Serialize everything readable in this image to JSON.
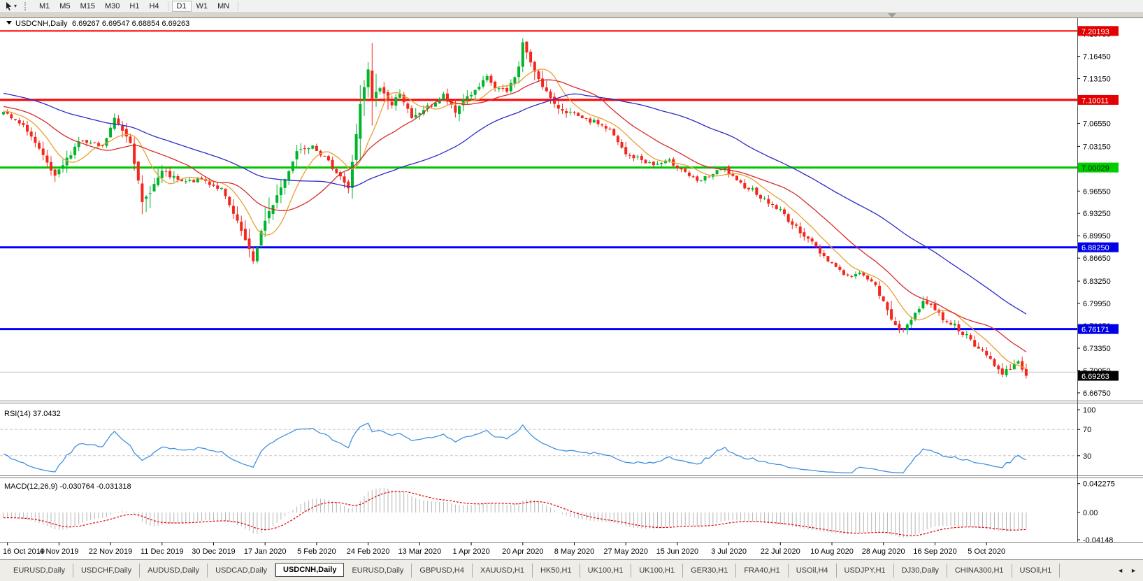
{
  "toolbar": {
    "timeframes": [
      "M1",
      "M5",
      "M15",
      "M30",
      "H1",
      "H4",
      "D1",
      "W1",
      "MN"
    ],
    "active_timeframe": "D1",
    "separators_after": [
      5,
      8
    ]
  },
  "chart": {
    "title": "USDCNH,Daily",
    "ohlc": "6.69267 6.69547 6.68854 6.69263",
    "price_ticks": [
      "7.19750",
      "7.16450",
      "7.13150",
      "7.06550",
      "7.03150",
      "6.96550",
      "6.93250",
      "6.89950",
      "6.86650",
      "6.83250",
      "6.79950",
      "6.76650",
      "6.73350",
      "6.70050",
      "6.66750"
    ]
  },
  "indicators": {
    "rsi": {
      "label": "RSI(14) 37.0432",
      "ticks": [
        {
          "v": 100,
          "t": "100"
        },
        {
          "v": 70,
          "t": "70"
        },
        {
          "v": 30,
          "t": "30"
        }
      ],
      "levels": [
        70,
        30
      ],
      "color": "#4191DF"
    },
    "macd": {
      "label": "MACD(12,26,9) -0.030764 -0.031318",
      "ticks": [
        {
          "v": 0.042275,
          "t": "0.042275"
        },
        {
          "v": 0,
          "t": "0.00"
        },
        {
          "v": -0.04148,
          "t": "-0.04148"
        }
      ]
    }
  },
  "dates": [
    "16 Oct 2019",
    "4 Nov 2019",
    "22 Nov 2019",
    "11 Dec 2019",
    "30 Dec 2019",
    "17 Jan 2020",
    "5 Feb 2020",
    "24 Feb 2020",
    "13 Mar 2020",
    "1 Apr 2020",
    "20 Apr 2020",
    "8 May 2020",
    "27 May 2020",
    "15 Jun 2020",
    "3 Jul 2020",
    "22 Jul 2020",
    "10 Aug 2020",
    "28 Aug 2020",
    "16 Sep 2020",
    "5 Oct 2020"
  ],
  "tabs": {
    "items": [
      "EURUSD,Daily",
      "USDCHF,Daily",
      "AUDUSD,Daily",
      "USDCAD,Daily",
      "USDCNH,Daily",
      "EURUSD,Daily",
      "GBPUSD,H4",
      "XAUUSD,H1",
      "HK50,H1",
      "UK100,H1",
      "UK100,H1",
      "GER30,H1",
      "FRA40,H1",
      "USOil,H4",
      "USDJPY,H1",
      "DJ30,Daily",
      "CHINA300,H1",
      "USOil,H1"
    ],
    "active_index": 4,
    "scroll_left": "◄",
    "scroll_right": "►"
  },
  "chart_data": {
    "type": "candlestick",
    "symbol": "USDCNH",
    "timeframe": "Daily",
    "open": 6.69267,
    "high": 6.69547,
    "low": 6.68854,
    "close": 6.69263,
    "count": 259,
    "seed": 7,
    "noise": 0.007,
    "ylim": [
      6.656,
      7.2064
    ],
    "prehistory_bars": 60,
    "date_tick_first_index": 1,
    "date_tick_step": 13,
    "up_color": "#00B42B",
    "down_color": "#F4271C",
    "ma": [
      {
        "period": 9,
        "color": "#E8A030"
      },
      {
        "period": 21,
        "color": "#D92B2B"
      },
      {
        "period": 55,
        "color": "#2B2BC8"
      }
    ],
    "rsi_period": 14,
    "macd_params": [
      12,
      26,
      9
    ],
    "hist_color": "#B4B4B4",
    "signal_color": "#E00000",
    "horizontal_lines": [
      {
        "price": 7.20193,
        "color": "#FF0000",
        "w": 2
      },
      {
        "price": 7.10011,
        "color": "#FF0000",
        "w": 3
      },
      {
        "price": 7.00029,
        "color": "#00C400",
        "w": 3
      },
      {
        "price": 6.8825,
        "color": "#0000FF",
        "w": 3
      },
      {
        "price": 6.76171,
        "color": "#0000FF",
        "w": 3
      },
      {
        "price": 6.698,
        "color": "#C8C8C8",
        "w": 1
      }
    ],
    "price_badges": [
      {
        "text": "7.20193",
        "price": 7.20193,
        "bg": "#E40000",
        "fg": "#FFFFFF"
      },
      {
        "text": "7.10011",
        "price": 7.10011,
        "bg": "#E40000",
        "fg": "#FFFFFF"
      },
      {
        "text": "7.00029",
        "price": 7.00029,
        "bg": "#00CC00",
        "fg": "#002900"
      },
      {
        "text": "6.88250",
        "price": 6.8825,
        "bg": "#0000E6",
        "fg": "#FFFFFF"
      },
      {
        "text": "6.76171",
        "price": 6.76171,
        "bg": "#0000E6",
        "fg": "#FFFFFF"
      },
      {
        "text": "6.69263",
        "price": 6.69263,
        "bg": "#000000",
        "fg": "#FFFFFF"
      }
    ],
    "waypoints": [
      [
        -60,
        7.148
      ],
      [
        -40,
        7.125
      ],
      [
        -20,
        7.102
      ],
      [
        -10,
        7.09
      ],
      [
        0,
        7.081
      ],
      [
        6,
        7.056
      ],
      [
        13,
        6.985
      ],
      [
        19,
        7.04
      ],
      [
        25,
        7.03
      ],
      [
        28,
        7.072
      ],
      [
        32,
        7.04
      ],
      [
        35,
        6.947
      ],
      [
        40,
        6.994
      ],
      [
        45,
        6.978
      ],
      [
        50,
        6.983
      ],
      [
        55,
        6.968
      ],
      [
        60,
        6.906
      ],
      [
        63,
        6.862
      ],
      [
        65,
        6.906
      ],
      [
        68,
        6.947
      ],
      [
        71,
        6.983
      ],
      [
        74,
        7.025
      ],
      [
        78,
        7.035
      ],
      [
        81,
        7.014
      ],
      [
        85,
        6.988
      ],
      [
        87,
        6.968
      ],
      [
        90,
        7.092
      ],
      [
        92,
        7.143
      ],
      [
        93,
        7.102
      ],
      [
        95,
        7.118
      ],
      [
        98,
        7.092
      ],
      [
        100,
        7.112
      ],
      [
        103,
        7.071
      ],
      [
        106,
        7.086
      ],
      [
        108,
        7.092
      ],
      [
        111,
        7.107
      ],
      [
        114,
        7.081
      ],
      [
        116,
        7.102
      ],
      [
        119,
        7.112
      ],
      [
        122,
        7.133
      ],
      [
        124,
        7.118
      ],
      [
        127,
        7.112
      ],
      [
        130,
        7.148
      ],
      [
        131,
        7.186
      ],
      [
        133,
        7.153
      ],
      [
        136,
        7.122
      ],
      [
        139,
        7.091
      ],
      [
        143,
        7.081
      ],
      [
        146,
        7.071
      ],
      [
        150,
        7.066
      ],
      [
        153,
        7.055
      ],
      [
        157,
        7.019
      ],
      [
        160,
        7.014
      ],
      [
        164,
        7.004
      ],
      [
        168,
        7.009
      ],
      [
        171,
        6.999
      ],
      [
        175,
        6.978
      ],
      [
        178,
        6.988
      ],
      [
        182,
        6.999
      ],
      [
        185,
        6.978
      ],
      [
        189,
        6.968
      ],
      [
        192,
        6.952
      ],
      [
        196,
        6.937
      ],
      [
        199,
        6.916
      ],
      [
        203,
        6.896
      ],
      [
        206,
        6.875
      ],
      [
        210,
        6.854
      ],
      [
        213,
        6.839
      ],
      [
        217,
        6.844
      ],
      [
        220,
        6.824
      ],
      [
        224,
        6.777
      ],
      [
        227,
        6.757
      ],
      [
        229,
        6.777
      ],
      [
        232,
        6.803
      ],
      [
        235,
        6.792
      ],
      [
        237,
        6.777
      ],
      [
        240,
        6.767
      ],
      [
        243,
        6.751
      ],
      [
        245,
        6.736
      ],
      [
        248,
        6.725
      ],
      [
        250,
        6.71
      ],
      [
        252,
        6.693
      ],
      [
        253,
        6.7
      ],
      [
        256,
        6.715
      ],
      [
        257,
        6.705
      ],
      [
        258,
        6.69263
      ]
    ]
  }
}
